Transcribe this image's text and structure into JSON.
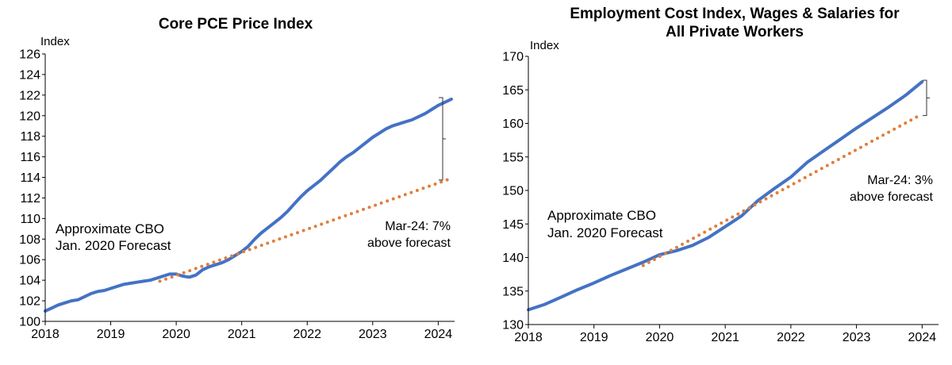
{
  "colors": {
    "actual": "#4472C4",
    "forecast": "#E07E3C",
    "axis": "#000000",
    "bracket": "#333333"
  },
  "chart_data": [
    {
      "type": "line",
      "title": "Core PCE Price Index",
      "title_lines": [
        "Core PCE Price Index"
      ],
      "ylabel": "Index",
      "xlabel": "",
      "xlim": [
        2018,
        2024.25
      ],
      "ylim": [
        100,
        126
      ],
      "xticks": [
        2018,
        2019,
        2020,
        2021,
        2022,
        2023,
        2024
      ],
      "yticks": [
        100,
        102,
        104,
        106,
        108,
        110,
        112,
        114,
        116,
        118,
        120,
        122,
        124,
        126
      ],
      "grid": false,
      "series": [
        {
          "name": "Core PCE Price Index",
          "style": "solid",
          "x": [
            2018.0,
            2018.1,
            2018.2,
            2018.3,
            2018.4,
            2018.5,
            2018.6,
            2018.7,
            2018.8,
            2018.9,
            2019.0,
            2019.1,
            2019.2,
            2019.3,
            2019.4,
            2019.5,
            2019.6,
            2019.7,
            2019.8,
            2019.9,
            2020.0,
            2020.1,
            2020.2,
            2020.3,
            2020.4,
            2020.5,
            2020.6,
            2020.7,
            2020.8,
            2020.9,
            2021.0,
            2021.1,
            2021.2,
            2021.3,
            2021.4,
            2021.5,
            2021.6,
            2021.7,
            2021.8,
            2021.9,
            2022.0,
            2022.1,
            2022.2,
            2022.3,
            2022.4,
            2022.5,
            2022.6,
            2022.7,
            2022.8,
            2022.9,
            2023.0,
            2023.1,
            2023.2,
            2023.3,
            2023.4,
            2023.5,
            2023.6,
            2023.7,
            2023.8,
            2023.9,
            2024.0,
            2024.1,
            2024.2
          ],
          "values": [
            101.0,
            101.3,
            101.6,
            101.8,
            102.0,
            102.1,
            102.4,
            102.7,
            102.9,
            103.0,
            103.2,
            103.4,
            103.6,
            103.7,
            103.8,
            103.9,
            104.0,
            104.2,
            104.4,
            104.6,
            104.6,
            104.4,
            104.3,
            104.5,
            105.0,
            105.3,
            105.5,
            105.7,
            106.0,
            106.4,
            106.8,
            107.3,
            108.0,
            108.6,
            109.1,
            109.6,
            110.1,
            110.7,
            111.4,
            112.1,
            112.7,
            113.2,
            113.7,
            114.3,
            114.9,
            115.5,
            116.0,
            116.4,
            116.9,
            117.4,
            117.9,
            118.3,
            118.7,
            119.0,
            119.2,
            119.4,
            119.6,
            119.9,
            120.2,
            120.6,
            121.0,
            121.3,
            121.6
          ]
        },
        {
          "name": "Approximate CBO Jan. 2020 Forecast",
          "style": "dotted",
          "x": [
            2019.75,
            2024.2
          ],
          "values": [
            103.9,
            113.9
          ]
        }
      ],
      "annotations": {
        "forecast_label": [
          "Approximate CBO",
          "Jan. 2020 Forecast"
        ],
        "gap_label": [
          "Mar-24: 7%",
          "above forecast"
        ]
      }
    },
    {
      "type": "line",
      "title": "Employment Cost Index, Wages & Salaries for All Private Workers",
      "title_lines": [
        "Employment Cost Index, Wages & Salaries for",
        "All Private Workers"
      ],
      "ylabel": "Index",
      "xlabel": "",
      "xlim": [
        2018,
        2024.25
      ],
      "ylim": [
        130,
        170
      ],
      "xticks": [
        2018,
        2019,
        2020,
        2021,
        2022,
        2023,
        2024
      ],
      "yticks": [
        130,
        135,
        140,
        145,
        150,
        155,
        160,
        165,
        170
      ],
      "grid": false,
      "series": [
        {
          "name": "Employment Cost Index, Wages & Salaries",
          "style": "solid",
          "x": [
            2018.0,
            2018.25,
            2018.5,
            2018.75,
            2019.0,
            2019.25,
            2019.5,
            2019.75,
            2020.0,
            2020.25,
            2020.5,
            2020.75,
            2021.0,
            2021.25,
            2021.5,
            2021.75,
            2022.0,
            2022.25,
            2022.5,
            2022.75,
            2023.0,
            2023.25,
            2023.5,
            2023.75,
            2024.0
          ],
          "values": [
            132.2,
            133.0,
            134.1,
            135.2,
            136.2,
            137.3,
            138.3,
            139.3,
            140.4,
            141.0,
            141.8,
            143.0,
            144.6,
            146.2,
            148.5,
            150.3,
            152.0,
            154.2,
            155.9,
            157.6,
            159.3,
            160.9,
            162.5,
            164.2,
            166.2
          ]
        },
        {
          "name": "Approximate CBO Jan. 2020 Forecast",
          "style": "dotted",
          "x": [
            2019.75,
            2024.0
          ],
          "values": [
            138.8,
            161.4
          ]
        }
      ],
      "annotations": {
        "forecast_label": [
          "Approximate CBO",
          "Jan. 2020 Forecast"
        ],
        "gap_label": [
          "Mar-24: 3%",
          "above forecast"
        ]
      }
    }
  ]
}
